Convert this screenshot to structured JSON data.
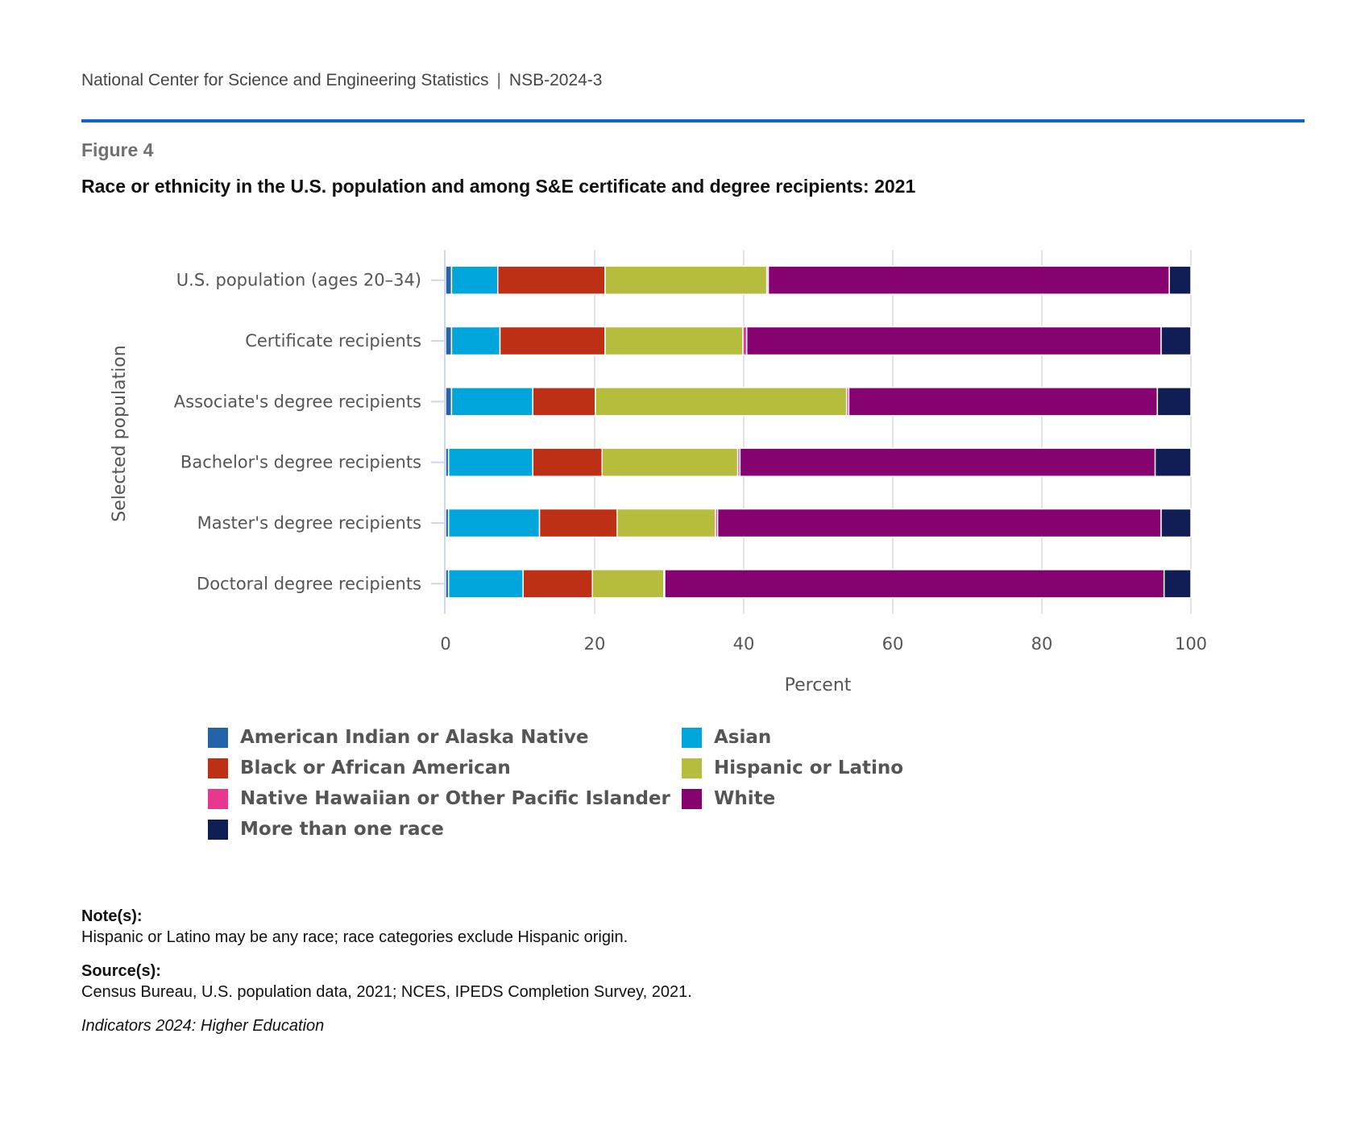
{
  "header": {
    "org": "National Center for Science and Engineering Statistics",
    "separator": "|",
    "report_id": "NSB-2024-3"
  },
  "figure": {
    "label": "Figure 4",
    "title": "Race or ethnicity in the U.S. population and among S&E certificate and degree recipients: 2021"
  },
  "colors": {
    "rule": "#0a66c8",
    "aian": "#2563a8",
    "asian": "#00a5db",
    "black": "#bd3015",
    "nhpi": "#e8378e",
    "hispanic": "#b6bd3d",
    "white": "#860270",
    "multi": "#111e56"
  },
  "chart_data": {
    "type": "bar",
    "orientation": "horizontal",
    "stacked": true,
    "title": "Race or ethnicity in the U.S. population and among S&E certificate and degree recipients: 2021",
    "xlabel": "Percent",
    "ylabel": "Selected population",
    "xlim": [
      0,
      100
    ],
    "xticks": [
      0,
      20,
      40,
      60,
      80,
      100
    ],
    "grid": true,
    "legend_position": "bottom",
    "categories": [
      "U.S. population (ages 20–34)",
      "Certificate recipients",
      "Associate's degree recipients",
      "Bachelor's degree recipients",
      "Master's degree recipients",
      "Doctoral degree recipients"
    ],
    "series": [
      {
        "key": "aian",
        "name": "American Indian or Alaska Native",
        "values": [
          0.8,
          0.8,
          0.8,
          0.4,
          0.4,
          0.4
        ]
      },
      {
        "key": "asian",
        "name": "Asian",
        "values": [
          6.2,
          6.5,
          10.9,
          11.3,
          12.2,
          10.0
        ]
      },
      {
        "key": "black",
        "name": "Black or African American",
        "values": [
          14.4,
          14.1,
          8.4,
          9.3,
          10.4,
          9.3
        ]
      },
      {
        "key": "hispanic",
        "name": "Hispanic or Latino",
        "values": [
          21.7,
          18.5,
          33.7,
          18.2,
          13.2,
          9.6
        ]
      },
      {
        "key": "nhpi",
        "name": "Native Hawaiian or Other Pacific Islander",
        "values": [
          0.2,
          0.5,
          0.3,
          0.3,
          0.3,
          0.1
        ]
      },
      {
        "key": "white",
        "name": "White",
        "values": [
          53.8,
          55.6,
          41.4,
          55.7,
          59.5,
          67.0
        ]
      },
      {
        "key": "multi",
        "name": "More than one race",
        "values": [
          2.9,
          4.0,
          4.5,
          4.8,
          4.0,
          3.6
        ]
      }
    ]
  },
  "legend": [
    {
      "key": "aian",
      "label": "American Indian or Alaska Native"
    },
    {
      "key": "asian",
      "label": "Asian"
    },
    {
      "key": "black",
      "label": "Black or African American"
    },
    {
      "key": "hispanic",
      "label": "Hispanic or Latino"
    },
    {
      "key": "nhpi",
      "label": "Native Hawaiian or Other Pacific Islander"
    },
    {
      "key": "white",
      "label": "White"
    },
    {
      "key": "multi",
      "label": "More than one race"
    }
  ],
  "notes": {
    "notes_heading": "Note(s):",
    "notes_text": "Hispanic or Latino may be any race; race categories exclude Hispanic origin.",
    "source_heading": "Source(s):",
    "source_text": "Census Bureau, U.S. population data, 2021; NCES, IPEDS Completion Survey, 2021.",
    "publication": "Indicators 2024: Higher Education"
  }
}
